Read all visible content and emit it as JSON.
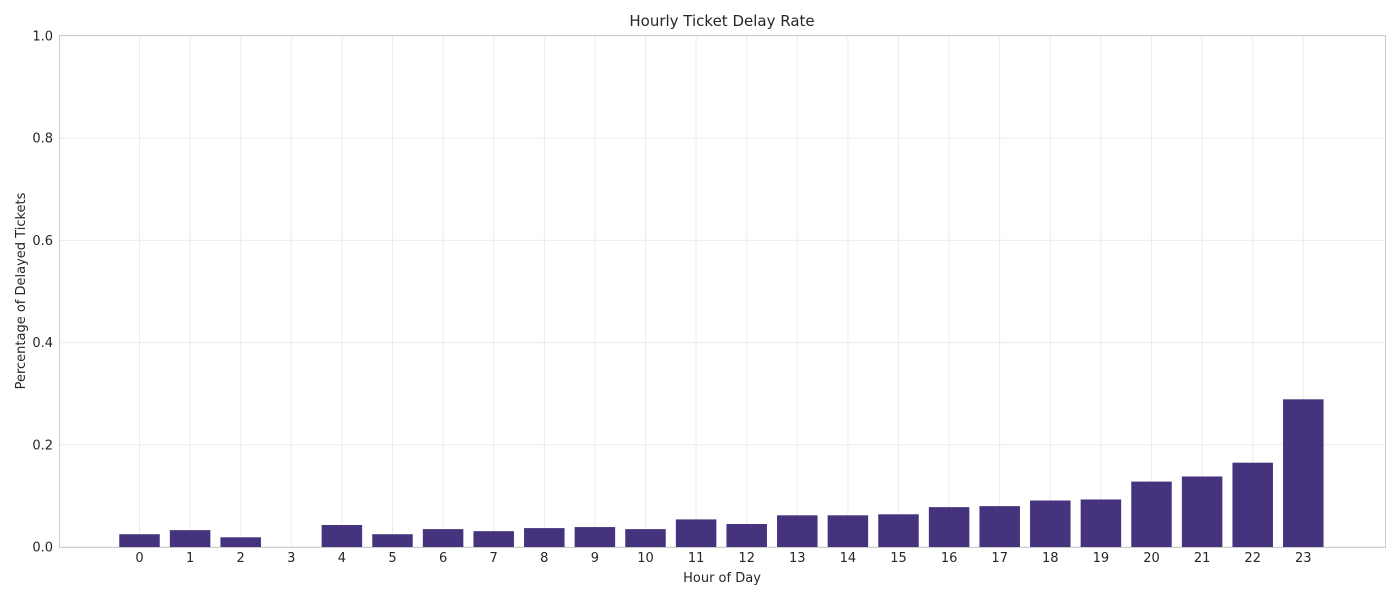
{
  "chart_data": {
    "type": "bar",
    "title": "Hourly Ticket Delay Rate",
    "xlabel": "Hour of Day",
    "ylabel": "Percentage of Delayed Tickets",
    "categories": [
      "0",
      "1",
      "2",
      "3",
      "4",
      "5",
      "6",
      "7",
      "8",
      "9",
      "10",
      "11",
      "12",
      "13",
      "14",
      "15",
      "16",
      "17",
      "18",
      "19",
      "20",
      "21",
      "22",
      "23"
    ],
    "values": [
      0.025,
      0.033,
      0.019,
      0.0,
      0.043,
      0.025,
      0.035,
      0.031,
      0.037,
      0.039,
      0.035,
      0.054,
      0.045,
      0.062,
      0.062,
      0.064,
      0.078,
      0.08,
      0.091,
      0.093,
      0.128,
      0.138,
      0.165,
      0.289
    ],
    "ylim": [
      0,
      1.0
    ],
    "yticks": [
      "0.0",
      "0.2",
      "0.4",
      "0.6",
      "0.8",
      "1.0"
    ],
    "bar_color": "#46337e",
    "grid": true,
    "legend": "none"
  }
}
